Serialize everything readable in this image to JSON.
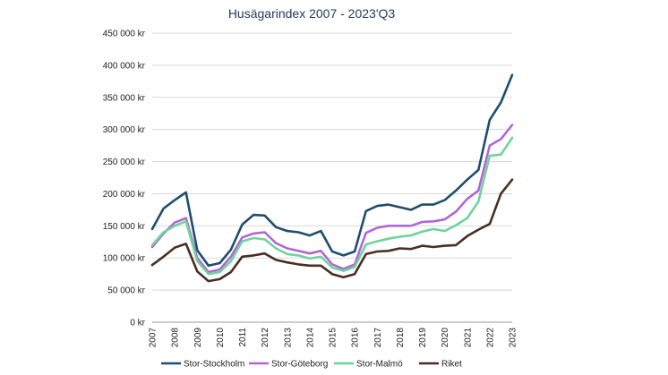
{
  "chart_data": {
    "type": "line",
    "title": "Husägarindex 2007 - 2023'Q3",
    "xlabel": "",
    "ylabel": "",
    "ylim": [
      0,
      450000
    ],
    "y_ticks": [
      0,
      50000,
      100000,
      150000,
      200000,
      250000,
      300000,
      350000,
      400000,
      450000
    ],
    "y_tick_labels": [
      "0 kr",
      "50 000 kr",
      "100 000 kr",
      "150 000 kr",
      "200 000 kr",
      "250 000 kr",
      "300 000 kr",
      "350 000 kr",
      "400 000 kr",
      "450 000 kr"
    ],
    "x_tick_labels": [
      "2007",
      "2008",
      "2009",
      "2010",
      "2011",
      "2012",
      "2013",
      "2014",
      "2015",
      "2016",
      "2017",
      "2018",
      "2019",
      "2020",
      "2021",
      "2022",
      "2023"
    ],
    "x_start": 2007.0,
    "x_step": 0.5,
    "grid": true,
    "legend_position": "bottom",
    "series": [
      {
        "name": "Stor-Stockholm",
        "color": "#1f4e6e",
        "values": [
          145000,
          177000,
          190000,
          202000,
          112000,
          88000,
          92000,
          113000,
          152000,
          167000,
          166000,
          148000,
          142000,
          140000,
          135000,
          142000,
          110000,
          104000,
          110000,
          173000,
          181000,
          183000,
          179000,
          175000,
          183000,
          183000,
          190000,
          205000,
          222000,
          237000,
          315000,
          342000,
          385000
        ]
      },
      {
        "name": "Stor-Göteborg",
        "color": "#b266d6",
        "values": [
          117000,
          138000,
          155000,
          162000,
          100000,
          78000,
          82000,
          102000,
          132000,
          138000,
          140000,
          123000,
          115000,
          111000,
          107000,
          111000,
          90000,
          83000,
          90000,
          139000,
          147000,
          150000,
          150000,
          150000,
          156000,
          157000,
          160000,
          172000,
          192000,
          205000,
          275000,
          285000,
          307000
        ]
      },
      {
        "name": "Stor-Malmö",
        "color": "#6fd39b",
        "values": [
          120000,
          140000,
          150000,
          157000,
          95000,
          75000,
          78000,
          95000,
          126000,
          131000,
          129000,
          115000,
          106000,
          104000,
          99000,
          102000,
          85000,
          80000,
          86000,
          121000,
          126000,
          130000,
          133000,
          135000,
          141000,
          145000,
          142000,
          151000,
          162000,
          188000,
          259000,
          261000,
          287000
        ]
      },
      {
        "name": "Riket",
        "color": "#4a2e22",
        "values": [
          89000,
          102000,
          116000,
          122000,
          79000,
          64000,
          67000,
          78000,
          102000,
          104000,
          107000,
          97000,
          93000,
          90000,
          88000,
          88000,
          75000,
          70000,
          75000,
          106000,
          110000,
          111000,
          115000,
          114000,
          119000,
          117000,
          119000,
          120000,
          134000,
          144000,
          153000,
          200000,
          222000
        ]
      }
    ]
  }
}
